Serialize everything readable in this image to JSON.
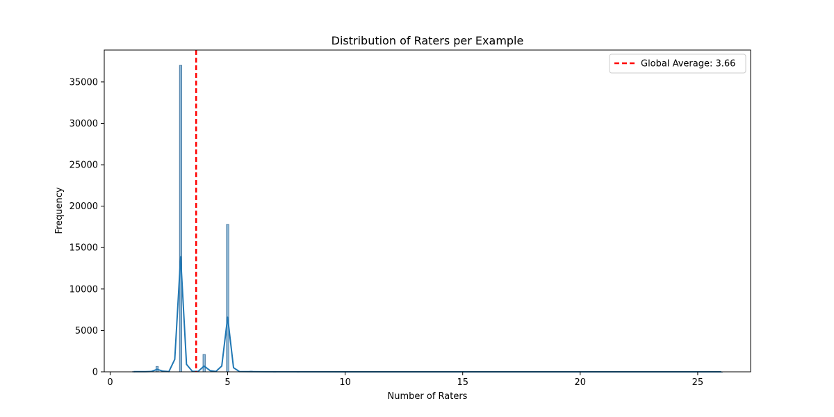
{
  "chart_data": {
    "type": "bar",
    "title": "Distribution of Raters per Example",
    "xlabel": "Number of Raters",
    "ylabel": "Frequency",
    "xlim": [
      -0.25,
      27.25
    ],
    "ylim": [
      0,
      38850
    ],
    "x_ticks": [
      0,
      5,
      10,
      15,
      20,
      25
    ],
    "y_ticks": [
      0,
      5000,
      10000,
      15000,
      20000,
      25000,
      30000,
      35000
    ],
    "bar_width": 0.1,
    "histogram": {
      "x": [
        1,
        2,
        3,
        4,
        5,
        6,
        7,
        8,
        10,
        15,
        20,
        26
      ],
      "values": [
        30,
        650,
        37000,
        2100,
        17800,
        80,
        20,
        10,
        5,
        3,
        2,
        2
      ],
      "fill_color": "#8fb8d6",
      "edge_color": "#3b6f99"
    },
    "kde": {
      "color": "#1f77b4",
      "x": [
        1,
        1.5,
        1.75,
        2,
        2.25,
        2.5,
        2.75,
        3,
        3.25,
        3.5,
        3.75,
        4,
        4.25,
        4.5,
        4.75,
        5,
        5.25,
        5.5,
        6,
        7,
        10,
        15,
        20,
        26
      ],
      "y": [
        20,
        20,
        40,
        300,
        80,
        30,
        1500,
        13900,
        900,
        50,
        60,
        700,
        150,
        40,
        700,
        6600,
        500,
        30,
        20,
        10,
        5,
        3,
        2,
        2
      ]
    },
    "reference_line": {
      "value": 3.66,
      "label": "Global Average: 3.66",
      "color": "#ff0000",
      "style": "dashed"
    },
    "grid": false,
    "legend_position": "top-right"
  }
}
